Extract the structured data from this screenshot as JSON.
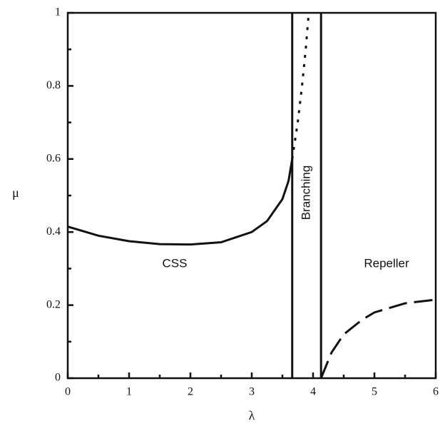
{
  "chart_data": {
    "type": "line",
    "xlabel": "λ",
    "ylabel": "μ",
    "xlim": [
      0,
      6
    ],
    "ylim": [
      0,
      1
    ],
    "xticks": [
      0,
      1,
      2,
      3,
      4,
      5,
      6
    ],
    "yticks": [
      0,
      0.2,
      0.4,
      0.6,
      0.8,
      1
    ],
    "xminorticks": [
      0.5,
      1.5,
      2.5,
      3.5,
      4.5,
      5.5
    ],
    "yminorticks": [
      0.1,
      0.3,
      0.5,
      0.7,
      0.9
    ],
    "annotations": [
      "CSS",
      "Branching",
      "Repeller"
    ],
    "series": [
      {
        "style": "solid",
        "color": "#111111",
        "x": [
          0,
          0.5,
          1,
          1.5,
          2,
          2.5,
          3,
          3.25,
          3.5,
          3.6,
          3.66
        ],
        "values": [
          0.415,
          0.39,
          0.375,
          0.367,
          0.366,
          0.372,
          0.4,
          0.43,
          0.49,
          0.54,
          0.6
        ]
      },
      {
        "style": "dotted",
        "color": "#111111",
        "x": [
          3.66,
          3.75,
          3.82,
          3.88,
          3.93
        ],
        "values": [
          0.6,
          0.7,
          0.8,
          0.9,
          1
        ]
      },
      {
        "style": "dashed",
        "color": "#111111",
        "x": [
          4.13,
          4.3,
          4.5,
          4.8,
          5,
          5.5,
          6
        ],
        "values": [
          0,
          0.07,
          0.12,
          0.16,
          0.18,
          0.205,
          0.215
        ]
      },
      {
        "style": "solid",
        "color": "#111111",
        "x": [
          3.66,
          3.66
        ],
        "values": [
          0,
          1
        ]
      },
      {
        "style": "solid",
        "color": "#111111",
        "x": [
          4.13,
          4.13
        ],
        "values": [
          0,
          1
        ]
      }
    ]
  }
}
